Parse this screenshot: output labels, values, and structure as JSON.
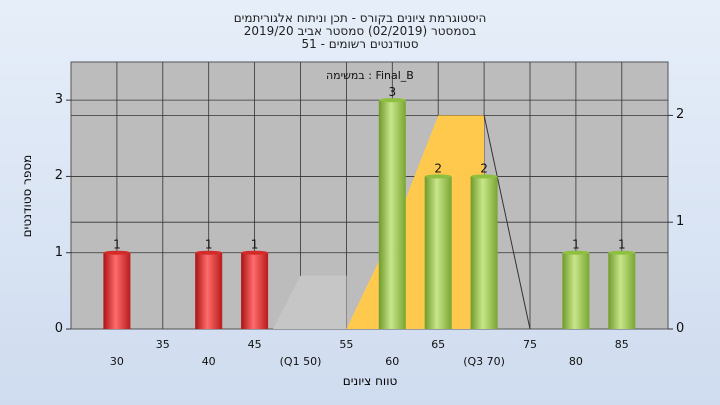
{
  "title": {
    "line1": "היסטוגרמת ציונים בקורס - תכן וניתוח אלגוריתמים",
    "line2": "בסמסטר  (02/2019)  סמסטר אביב  2019/20",
    "line3": "סטודנטים רשומים - 51"
  },
  "chart_data": {
    "type": "bar",
    "subtitle": "במשימה : Final_B",
    "xlabel": "טווח ציונים",
    "ylabel": "מספר סטודנטים",
    "x_ticks": [
      "30",
      "35",
      "40",
      "45",
      "(Q1 50)",
      "55",
      "60",
      "65",
      "(Q3 70)",
      "75",
      "80",
      "85"
    ],
    "y_ticks": [
      "0",
      "1",
      "2",
      "3"
    ],
    "y2_ticks": [
      "0",
      "1",
      "2"
    ],
    "ylim": [
      0,
      3.5
    ],
    "y2lim": [
      0,
      2.5
    ],
    "grid": true,
    "bars": [
      {
        "x": 30,
        "value": 1,
        "label": "1",
        "color": "#d42a2a"
      },
      {
        "x": 40,
        "value": 1,
        "label": "1",
        "color": "#d42a2a"
      },
      {
        "x": 45,
        "value": 1,
        "label": "1",
        "color": "#d42a2a"
      },
      {
        "x": 60,
        "value": 3,
        "label": "3",
        "color": "#8fbf3f"
      },
      {
        "x": 65,
        "value": 2,
        "label": "2",
        "color": "#8fbf3f"
      },
      {
        "x": 70,
        "value": 2,
        "label": "2",
        "color": "#8fbf3f"
      },
      {
        "x": 80,
        "value": 1,
        "label": "1",
        "color": "#8fbf3f"
      },
      {
        "x": 85,
        "value": 1,
        "label": "1",
        "color": "#8fbf3f"
      }
    ],
    "gray_area": [
      [
        47,
        0
      ],
      [
        50,
        0.5
      ],
      [
        55,
        0.5
      ],
      [
        55,
        0
      ]
    ],
    "yellow_area": [
      [
        55,
        0
      ],
      [
        60,
        0.9
      ],
      [
        65,
        2
      ],
      [
        70,
        2
      ],
      [
        70,
        0
      ]
    ],
    "trend_line": [
      [
        70,
        2
      ],
      [
        75,
        0
      ]
    ],
    "colors": {
      "plot_bg": "#bcbcbc",
      "fail": "#d42a2a",
      "pass": "#8fbf3f",
      "quartile_gray": "#c6c6c6",
      "quartile_yellow": "#ffc94d"
    }
  }
}
